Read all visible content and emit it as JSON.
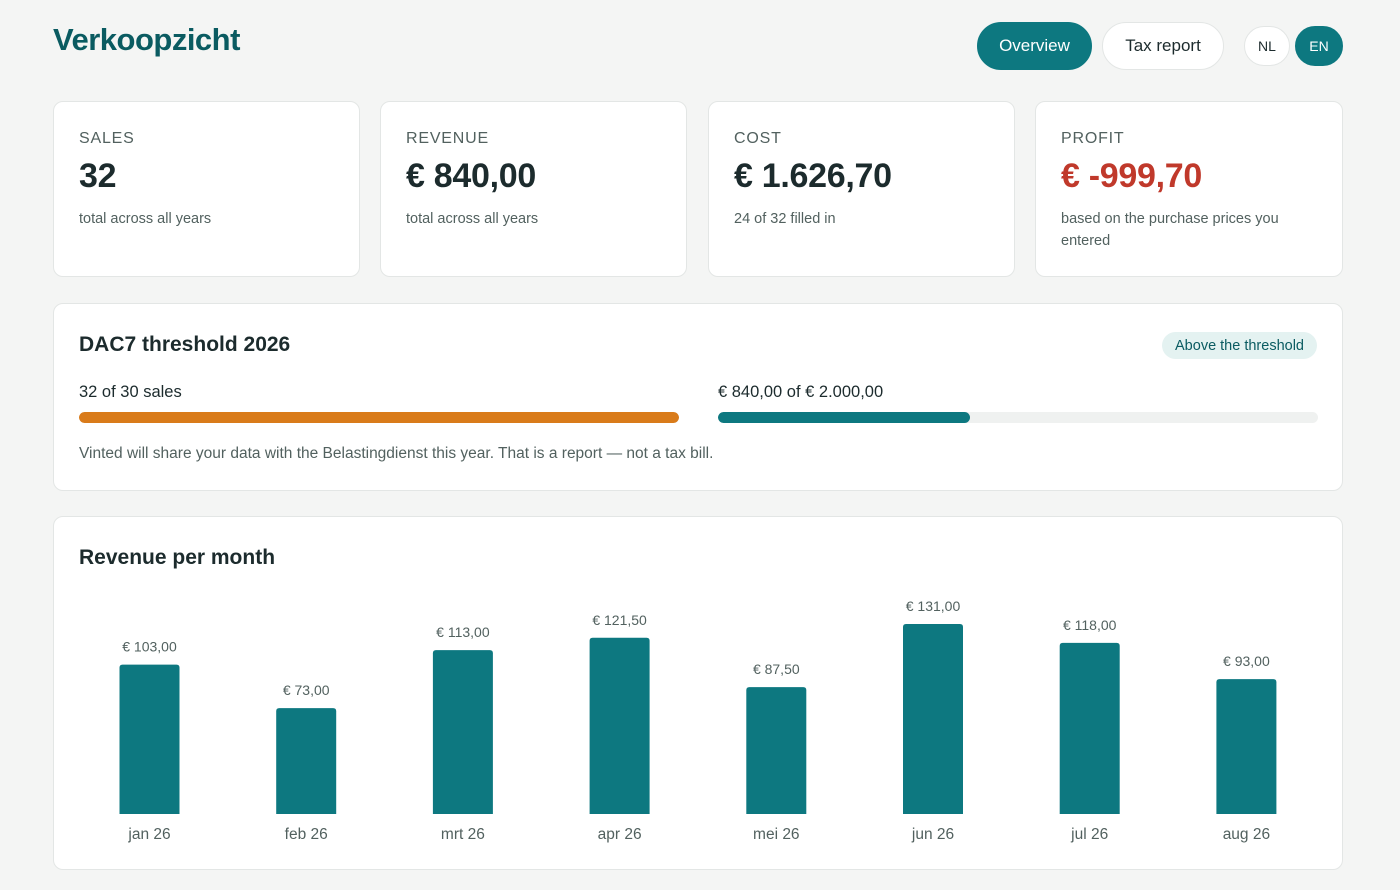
{
  "header": {
    "title": "Verkoopzicht",
    "nav": {
      "overview_label": "Overview",
      "tax_report_label": "Tax report"
    },
    "languages": {
      "nl_label": "NL",
      "en_label": "EN",
      "active": "EN"
    }
  },
  "stats": [
    {
      "label": "SALES",
      "value": "32",
      "note": "total across all years"
    },
    {
      "label": "REVENUE",
      "value": "€ 840,00",
      "note": "total across all years"
    },
    {
      "label": "COST",
      "value": "€ 1.626,70",
      "note": "24 of 32 filled in"
    },
    {
      "label": "PROFIT",
      "value": "€ -999,70",
      "note": "based on the purchase prices you entered"
    }
  ],
  "threshold": {
    "title": "DAC7 threshold 2026",
    "badge": "Above the threshold",
    "sales_label": "32 of 30 sales",
    "sales_progress": 1.0,
    "revenue_label": "€ 840,00 of € 2.000,00",
    "revenue_progress": 0.42,
    "note": "Vinted will share your data with the Belastingdienst this year. That is a report — not a tax bill."
  },
  "colors": {
    "brand": "#0d7880",
    "title": "#0a5b61",
    "sales_bar": "#d97b1a",
    "negative": "#c0392b",
    "badge_bg": "#e4f2f1"
  },
  "chart_data": {
    "type": "bar",
    "title": "Revenue per month",
    "categories": [
      "jan 26",
      "feb 26",
      "mrt 26",
      "apr 26",
      "mei 26",
      "jun 26",
      "jul 26",
      "aug 26"
    ],
    "values": [
      103,
      73,
      113,
      121.5,
      87.5,
      131,
      118,
      93
    ],
    "value_labels": [
      "€ 103,00",
      "€ 73,00",
      "€ 113,00",
      "€ 121,50",
      "€ 87,50",
      "€ 131,00",
      "€ 118,00",
      "€ 93,00"
    ],
    "xlabel": "",
    "ylabel": ""
  }
}
